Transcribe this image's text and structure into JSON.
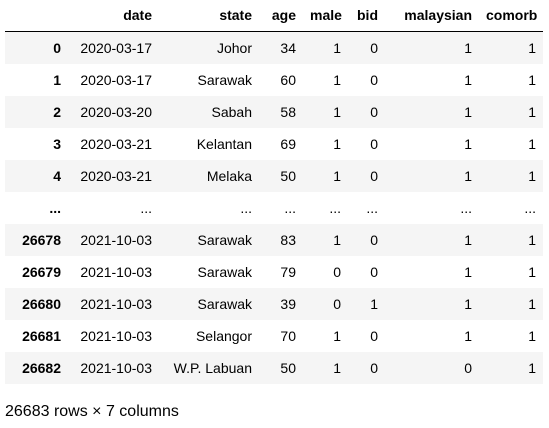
{
  "table": {
    "index_header": "",
    "columns": [
      "date",
      "state",
      "age",
      "male",
      "bid",
      "malaysian",
      "comorb"
    ],
    "rows": [
      {
        "index": "0",
        "cells": [
          "2020-03-17",
          "Johor",
          "34",
          "1",
          "0",
          "1",
          "1"
        ]
      },
      {
        "index": "1",
        "cells": [
          "2020-03-17",
          "Sarawak",
          "60",
          "1",
          "0",
          "1",
          "1"
        ]
      },
      {
        "index": "2",
        "cells": [
          "2020-03-20",
          "Sabah",
          "58",
          "1",
          "0",
          "1",
          "1"
        ]
      },
      {
        "index": "3",
        "cells": [
          "2020-03-21",
          "Kelantan",
          "69",
          "1",
          "0",
          "1",
          "1"
        ]
      },
      {
        "index": "4",
        "cells": [
          "2020-03-21",
          "Melaka",
          "50",
          "1",
          "0",
          "1",
          "1"
        ]
      },
      {
        "index": "...",
        "cells": [
          "...",
          "...",
          "...",
          "...",
          "...",
          "...",
          "..."
        ]
      },
      {
        "index": "26678",
        "cells": [
          "2021-10-03",
          "Sarawak",
          "83",
          "1",
          "0",
          "1",
          "1"
        ]
      },
      {
        "index": "26679",
        "cells": [
          "2021-10-03",
          "Sarawak",
          "79",
          "0",
          "0",
          "1",
          "1"
        ]
      },
      {
        "index": "26680",
        "cells": [
          "2021-10-03",
          "Sarawak",
          "39",
          "0",
          "1",
          "1",
          "1"
        ]
      },
      {
        "index": "26681",
        "cells": [
          "2021-10-03",
          "Selangor",
          "70",
          "1",
          "0",
          "1",
          "1"
        ]
      },
      {
        "index": "26682",
        "cells": [
          "2021-10-03",
          "W.P. Labuan",
          "50",
          "1",
          "0",
          "0",
          "1"
        ]
      }
    ]
  },
  "footer": {
    "shape_text": "26683 rows × 7 columns"
  }
}
